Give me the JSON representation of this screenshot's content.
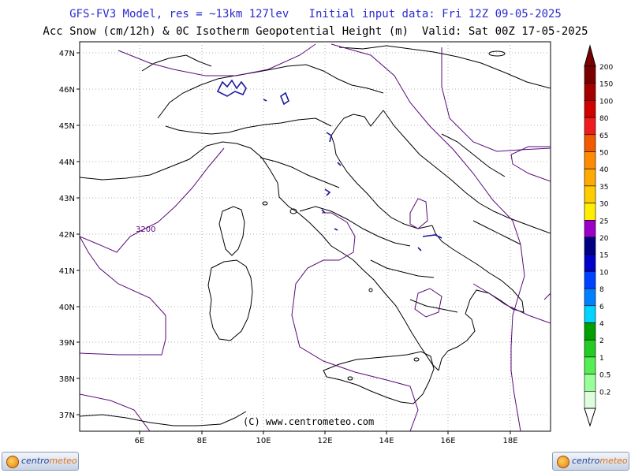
{
  "header": {
    "title_line1": "GFS-FV3 Model, res = ~13km 127lev   Initial input data: Fri 12Z 09-05-2025",
    "title_line2": "Acc Snow (cm/12h) & 0C Isotherm Geopotential Height (m)  Valid: Sat 00Z 17-05-2025"
  },
  "map": {
    "lat_labels": [
      "47N",
      "46N",
      "45N",
      "44N",
      "43N",
      "42N",
      "41N",
      "40N",
      "39N",
      "38N",
      "37N"
    ],
    "lon_labels": [
      "6E",
      "8E",
      "10E",
      "12E",
      "14E",
      "16E",
      "18E"
    ],
    "contour_label": "3200",
    "watermark": "(C) www.centrometeo.com",
    "colors": {
      "coast": "#000000",
      "isotherm": "#5a0a78",
      "snow": "#1a1aa0",
      "grid": "#888888"
    }
  },
  "colorbar": {
    "labels": [
      "200",
      "150",
      "100",
      "80",
      "65",
      "50",
      "40",
      "35",
      "30",
      "25",
      "20",
      "15",
      "10",
      "8",
      "6",
      "4",
      "2",
      "1",
      "0.5",
      "0.2"
    ],
    "colors": [
      "#7a0000",
      "#a40000",
      "#d00000",
      "#ee1c1c",
      "#f25a00",
      "#ff8c00",
      "#ffaa00",
      "#ffcc00",
      "#ffee00",
      "#9b00c8",
      "#000080",
      "#0000c8",
      "#0040ff",
      "#0080ff",
      "#00d4ff",
      "#00a000",
      "#22cc22",
      "#55ee55",
      "#99ff99",
      "#ddffdd"
    ]
  },
  "branding": {
    "logo_left": "centrometeo",
    "logo_right": "centrometeo"
  }
}
